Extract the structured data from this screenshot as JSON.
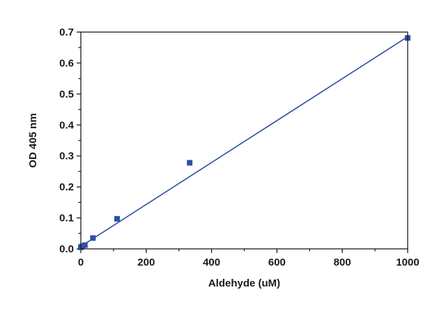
{
  "chart_data": {
    "type": "scatter",
    "xlabel": "Aldehyde (uM)",
    "ylabel": "OD 405 nm",
    "xlim": [
      0,
      1000
    ],
    "ylim": [
      0,
      0.7
    ],
    "x_ticks": [
      0,
      200,
      400,
      600,
      800,
      1000
    ],
    "y_ticks": [
      0.0,
      0.1,
      0.2,
      0.3,
      0.4,
      0.5,
      0.6,
      0.7
    ],
    "x_tick_labels": [
      "0",
      "200",
      "400",
      "600",
      "800",
      "1000"
    ],
    "y_tick_labels": [
      "0.0",
      "0.1",
      "0.2",
      "0.3",
      "0.4",
      "0.5",
      "0.6",
      "0.7"
    ],
    "grid": false,
    "series": [
      {
        "points": [
          {
            "x": 0,
            "y": 0.005
          },
          {
            "x": 4.1,
            "y": 0.008
          },
          {
            "x": 12.3,
            "y": 0.012
          },
          {
            "x": 37,
            "y": 0.035
          },
          {
            "x": 111,
            "y": 0.097
          },
          {
            "x": 333,
            "y": 0.278
          },
          {
            "x": 1000,
            "y": 0.681
          }
        ],
        "color": "#2f4fa6",
        "marker": "square"
      }
    ],
    "fit_line": {
      "x": [
        0,
        1000
      ],
      "y": [
        0.008,
        0.685
      ],
      "color": "#2e4aa8"
    }
  }
}
